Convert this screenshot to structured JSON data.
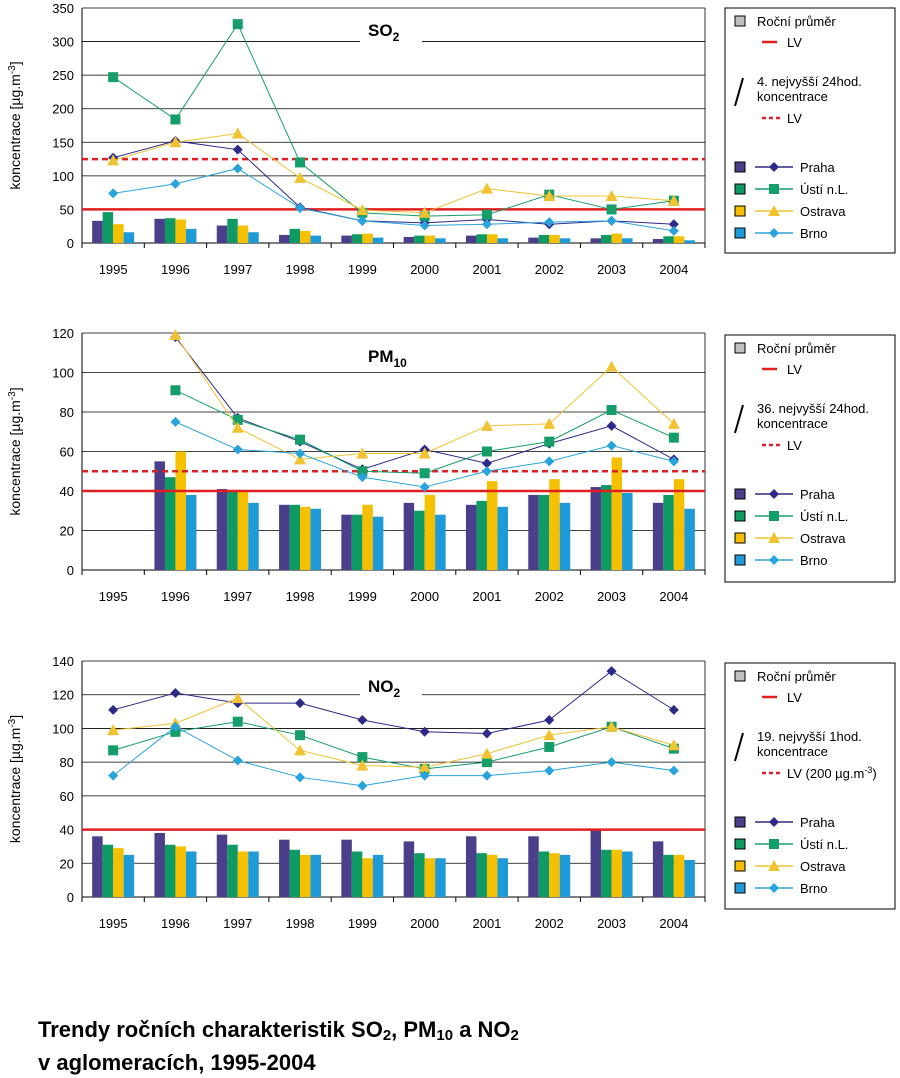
{
  "title": {
    "pre": "Trendy ročních charakteristik SO",
    "sub1": "2",
    "mid1": ", PM",
    "sub2": "10",
    "mid2": " a NO",
    "sub3": "2",
    "line2": "v aglomeracích, 1995-2004"
  },
  "colors": {
    "Praha": "#4b3f8c",
    "Ústí n.L.": "#109a63",
    "Ostrava": "#f5c000",
    "Brno": "#1e9ad6",
    "Praha_line": "#2e2a8a",
    "Usti_line": "#159d6a",
    "Ostrava_line": "#f1c232",
    "Brno_line": "#29a3dc",
    "lv": "#e02020",
    "legend_box": "#c0c0c0"
  },
  "chart_data": [
    {
      "type": "bar",
      "title_main": "SO",
      "title_sub": "2",
      "ylabel": "koncentrace [µg.m",
      "ylabel_sup": "-3",
      "ylabel_end": "]",
      "ylim": [
        0,
        350
      ],
      "yticks": [
        "0",
        "50",
        "100",
        "150",
        "200",
        "250",
        "300",
        "350"
      ],
      "categories": [
        "1995",
        "1996",
        "1997",
        "1998",
        "1999",
        "2000",
        "2001",
        "2002",
        "2003",
        "2004"
      ],
      "lv_annual": 50,
      "lv_short": 125,
      "bars": [
        {
          "name": "Praha",
          "values": [
            33,
            36,
            26,
            12,
            11,
            9,
            11,
            8,
            7,
            6
          ]
        },
        {
          "name": "Ústí n.L.",
          "values": [
            46,
            37,
            36,
            21,
            13,
            11,
            13,
            12,
            12,
            10
          ]
        },
        {
          "name": "Ostrava",
          "values": [
            28,
            35,
            26,
            18,
            14,
            11,
            13,
            12,
            14,
            10
          ]
        },
        {
          "name": "Brno",
          "values": [
            16,
            21,
            16,
            11,
            8,
            7,
            7,
            7,
            7,
            4
          ]
        }
      ],
      "lines": [
        {
          "name": "Praha",
          "values": [
            127,
            152,
            139,
            53,
            33,
            30,
            35,
            28,
            33,
            28
          ]
        },
        {
          "name": "Ústí n.L.",
          "values": [
            247,
            184,
            326,
            120,
            45,
            40,
            42,
            72,
            50,
            63
          ]
        },
        {
          "name": "Ostrava",
          "values": [
            123,
            150,
            163,
            97,
            49,
            45,
            81,
            70,
            70,
            63
          ]
        },
        {
          "name": "Brno",
          "values": [
            74,
            88,
            111,
            52,
            33,
            26,
            28,
            31,
            33,
            18
          ]
        }
      ],
      "legend": {
        "annual_label": "Roční průměr",
        "lv_label": "LV",
        "short_label_1": "4. nejvyšší 24hod.",
        "short_label_2": "koncentrace",
        "short_lv_label": "LV",
        "series": [
          "Praha",
          "Ústí n.L.",
          "Ostrava",
          "Brno"
        ]
      }
    },
    {
      "type": "bar",
      "title_main": "PM",
      "title_sub": "10",
      "ylabel": "koncentrace [µg.m",
      "ylabel_sup": "-3",
      "ylabel_end": "]",
      "ylim": [
        0,
        120
      ],
      "yticks": [
        "0",
        "20",
        "40",
        "60",
        "80",
        "100",
        "120"
      ],
      "categories": [
        "1995",
        "1996",
        "1997",
        "1998",
        "1999",
        "2000",
        "2001",
        "2002",
        "2003",
        "2004"
      ],
      "lv_annual": 40,
      "lv_short": 50,
      "bars": [
        {
          "name": "Praha",
          "values": [
            null,
            55,
            41,
            33,
            28,
            34,
            33,
            38,
            42,
            34
          ]
        },
        {
          "name": "Ústí n.L.",
          "values": [
            null,
            47,
            40,
            33,
            28,
            30,
            35,
            38,
            43,
            38
          ]
        },
        {
          "name": "Ostrava",
          "values": [
            null,
            60,
            40,
            32,
            33,
            38,
            45,
            46,
            57,
            46
          ]
        },
        {
          "name": "Brno",
          "values": [
            null,
            38,
            34,
            31,
            27,
            28,
            32,
            34,
            39,
            31
          ]
        }
      ],
      "lines": [
        {
          "name": "Praha",
          "values": [
            null,
            118,
            77,
            65,
            51,
            61,
            54,
            64,
            73,
            56
          ]
        },
        {
          "name": "Ústí n.L.",
          "values": [
            null,
            91,
            76,
            66,
            50,
            49,
            60,
            65,
            81,
            67
          ]
        },
        {
          "name": "Ostrava",
          "values": [
            null,
            119,
            72,
            56,
            59,
            59,
            73,
            74,
            103,
            74
          ]
        },
        {
          "name": "Brno",
          "values": [
            null,
            75,
            61,
            59,
            47,
            42,
            50,
            55,
            63,
            55
          ]
        }
      ],
      "legend": {
        "annual_label": "Roční průměr",
        "lv_label": "LV",
        "short_label_1": "36. nejvyšší 24hod.",
        "short_label_2": "koncentrace",
        "short_lv_label": "LV",
        "series": [
          "Praha",
          "Ústí n.L.",
          "Ostrava",
          "Brno"
        ]
      }
    },
    {
      "type": "bar",
      "title_main": "NO",
      "title_sub": "2",
      "ylabel": "koncentrace [µg.m",
      "ylabel_sup": "-3",
      "ylabel_end": "]",
      "ylim": [
        0,
        140
      ],
      "yticks": [
        "0",
        "20",
        "40",
        "60",
        "80",
        "100",
        "120",
        "140"
      ],
      "categories": [
        "1995",
        "1996",
        "1997",
        "1998",
        "1999",
        "2000",
        "2001",
        "2002",
        "2003",
        "2004"
      ],
      "lv_annual": 40,
      "lv_short": null,
      "bars": [
        {
          "name": "Praha",
          "values": [
            36,
            38,
            37,
            34,
            34,
            33,
            36,
            36,
            40,
            33
          ]
        },
        {
          "name": "Ústí n.L.",
          "values": [
            31,
            31,
            31,
            28,
            27,
            26,
            26,
            27,
            28,
            25
          ]
        },
        {
          "name": "Ostrava",
          "values": [
            29,
            30,
            27,
            25,
            23,
            23,
            25,
            26,
            28,
            25
          ]
        },
        {
          "name": "Brno",
          "values": [
            25,
            27,
            27,
            25,
            25,
            23,
            23,
            25,
            27,
            22
          ]
        }
      ],
      "lines": [
        {
          "name": "Praha",
          "values": [
            111,
            121,
            115,
            115,
            105,
            98,
            97,
            105,
            134,
            111
          ]
        },
        {
          "name": "Ústí n.L.",
          "values": [
            87,
            98,
            104,
            96,
            83,
            76,
            80,
            89,
            101,
            88
          ]
        },
        {
          "name": "Ostrava",
          "values": [
            99,
            103,
            118,
            87,
            78,
            77,
            85,
            96,
            101,
            90
          ]
        },
        {
          "name": "Brno",
          "values": [
            72,
            101,
            81,
            71,
            66,
            72,
            72,
            75,
            80,
            75
          ]
        }
      ],
      "legend": {
        "annual_label": "Roční průměr",
        "lv_label": "LV",
        "short_label_1": "19. nejvyšší 1hod.",
        "short_label_2": "koncentrace",
        "short_lv_label": "LV (200 µg.m",
        "short_lv_sup": "-3",
        "short_lv_end": ")",
        "series": [
          "Praha",
          "Ústí n.L.",
          "Ostrava",
          "Brno"
        ]
      }
    }
  ]
}
